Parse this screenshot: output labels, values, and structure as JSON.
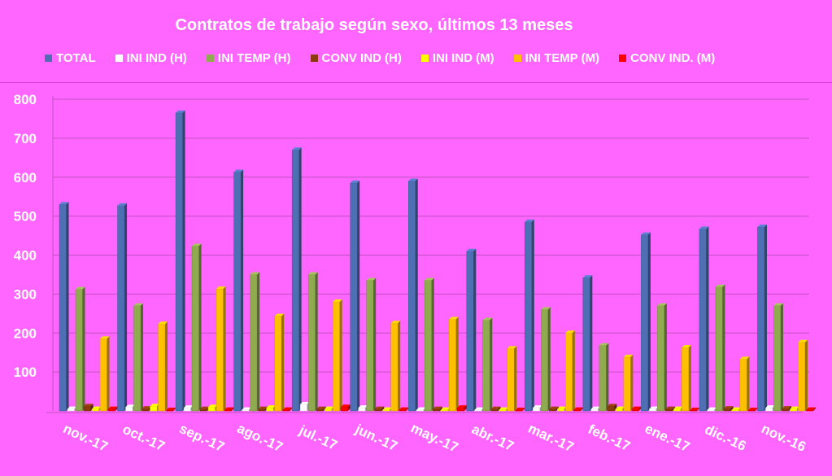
{
  "chart_data": {
    "type": "bar",
    "title": "Contratos de trabajo según sexo, últimos 13 meses",
    "categories": [
      "nov.-17",
      "oct.-17",
      "sep.-17",
      "ago.-17",
      "jul.-17",
      "jun.-17",
      "may.-17",
      "abr.-17",
      "mar.-17",
      "feb.-17",
      "ene.-17",
      "dic.-16",
      "nov.-16"
    ],
    "ylim": [
      0,
      800
    ],
    "yticks": [
      100,
      200,
      300,
      400,
      500,
      600,
      700,
      800
    ],
    "grid": true,
    "legend_position": "top",
    "series": [
      {
        "name": "TOTAL",
        "color": "#4F6FB5",
        "values": [
          530,
          527,
          765,
          613,
          670,
          585,
          590,
          410,
          485,
          342,
          452,
          467,
          472
        ]
      },
      {
        "name": "INI IND (H)",
        "color": "#FFFFFF",
        "values": [
          5,
          10,
          8,
          3,
          17,
          8,
          3,
          3,
          8,
          5,
          5,
          3,
          8
        ]
      },
      {
        "name": "INI TEMP (H)",
        "color": "#8FAA4F",
        "values": [
          312,
          270,
          423,
          350,
          350,
          335,
          335,
          233,
          260,
          168,
          270,
          318,
          270
        ]
      },
      {
        "name": "CONV IND (H)",
        "color": "#8B3A0E",
        "values": [
          12,
          6,
          5,
          5,
          5,
          5,
          5,
          5,
          5,
          12,
          5,
          6,
          6
        ]
      },
      {
        "name": "INI IND (M)",
        "color": "#FFFF00",
        "values": [
          5,
          12,
          10,
          8,
          5,
          3,
          3,
          3,
          5,
          5,
          5,
          3,
          5
        ]
      },
      {
        "name": "INI TEMP  (M)",
        "color": "#FFC000",
        "values": [
          185,
          223,
          313,
          243,
          280,
          225,
          235,
          160,
          200,
          138,
          163,
          133,
          176
        ]
      },
      {
        "name": "CONV IND.  (M)",
        "color": "#FF0000",
        "values": [
          5,
          2,
          3,
          3,
          10,
          3,
          8,
          2,
          3,
          5,
          2,
          2,
          3
        ]
      }
    ]
  }
}
